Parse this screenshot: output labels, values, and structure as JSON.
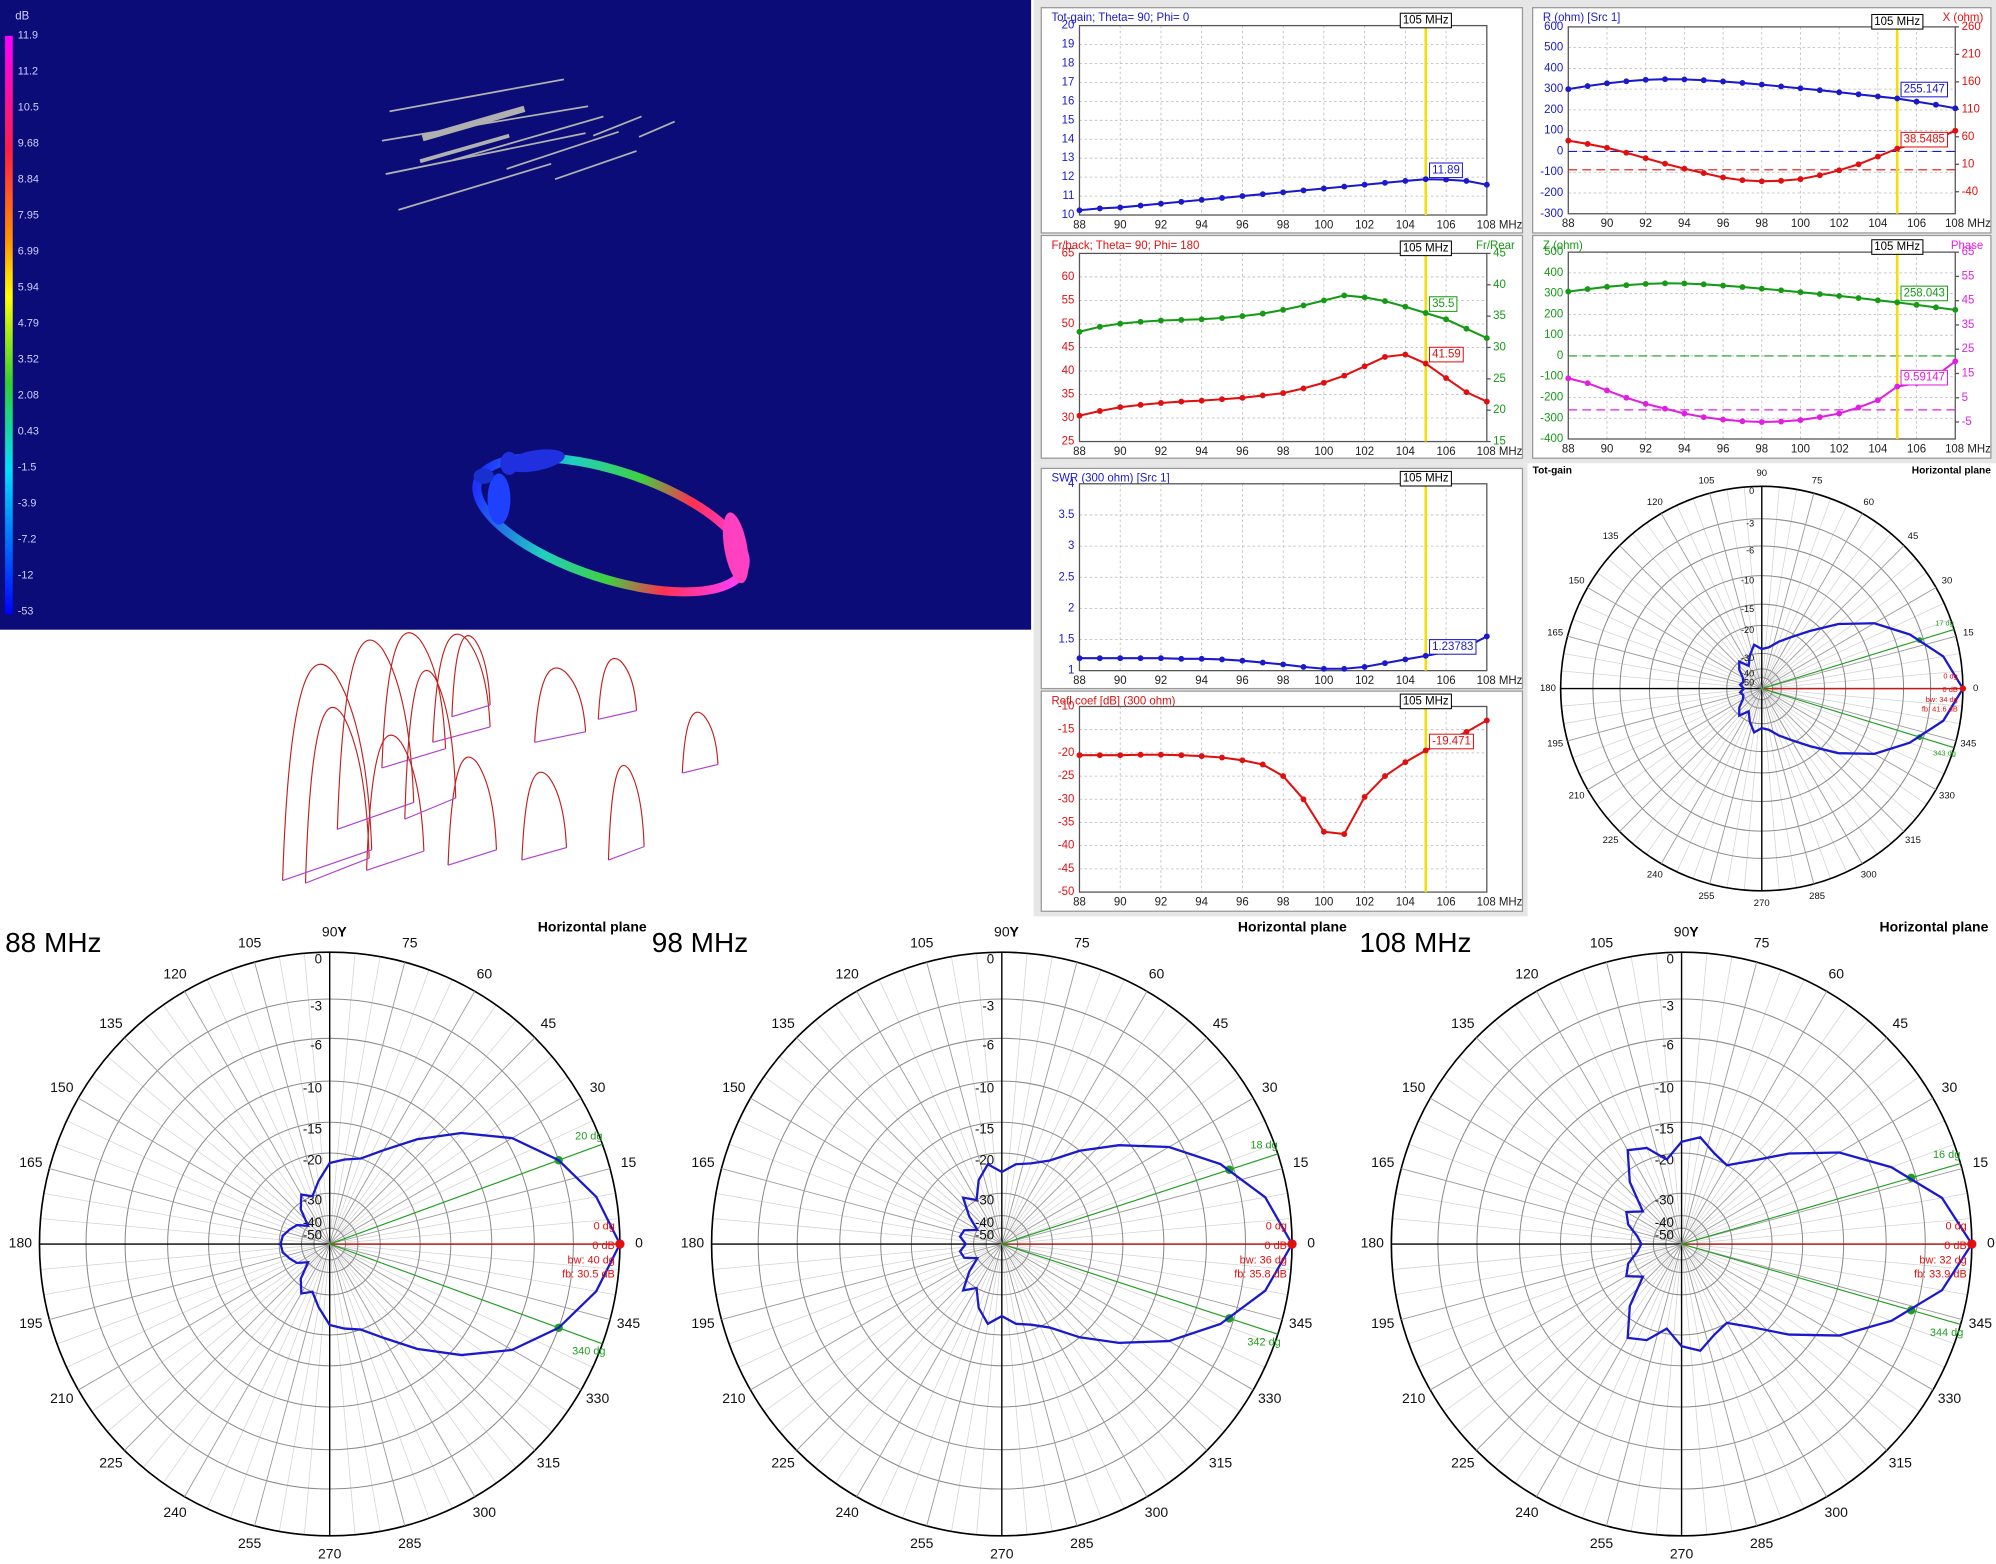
{
  "view3d": {
    "colorbar_title": "dB",
    "colorbar_ticks": [
      11.9,
      11.2,
      10.5,
      9.68,
      8.84,
      7.95,
      6.99,
      5.94,
      4.79,
      3.52,
      2.08,
      0.43,
      -1.5,
      -3.9,
      -7.2,
      -12,
      -53
    ]
  },
  "chart_data": [
    {
      "type": "line",
      "title": "Tot-gain; Theta= 90; Phi= 0",
      "title_color": "#1a1acc",
      "x": [
        88,
        89,
        90,
        91,
        92,
        93,
        94,
        95,
        96,
        97,
        98,
        99,
        100,
        101,
        102,
        103,
        104,
        105,
        106,
        107,
        108
      ],
      "xlim": [
        88,
        108
      ],
      "xticks": [
        88,
        90,
        92,
        94,
        96,
        98,
        100,
        102,
        104,
        106,
        {
          "value": 108,
          "label": "108 MHz"
        }
      ],
      "ylim": [
        10,
        20
      ],
      "yticks": [
        10,
        11,
        12,
        13,
        14,
        15,
        16,
        17,
        18,
        19,
        20
      ],
      "grid": true,
      "cursor": {
        "value": 105,
        "label": "105 MHz"
      },
      "series": [
        {
          "color": "#1a1acc",
          "values": [
            10.25,
            10.35,
            10.4,
            10.5,
            10.6,
            10.7,
            10.8,
            10.9,
            11.0,
            11.1,
            11.2,
            11.3,
            11.4,
            11.5,
            11.6,
            11.7,
            11.8,
            11.89,
            11.87,
            11.8,
            11.6
          ],
          "readout": 11.89
        }
      ]
    },
    {
      "type": "line",
      "title": "R (ohm) [Src 1]",
      "title_color": "#1a1acc",
      "y2_title": "X (ohm)",
      "y2_title_color": "#e01010",
      "x": [
        88,
        89,
        90,
        91,
        92,
        93,
        94,
        95,
        96,
        97,
        98,
        99,
        100,
        101,
        102,
        103,
        104,
        105,
        106,
        107,
        108
      ],
      "xlim": [
        88,
        108
      ],
      "xticks": [
        88,
        90,
        92,
        94,
        96,
        98,
        100,
        102,
        104,
        106,
        {
          "value": 108,
          "label": "108 MHz"
        }
      ],
      "ylim": [
        -300,
        600
      ],
      "yticks": [
        -300,
        -200,
        -100,
        0,
        100,
        200,
        300,
        400,
        500,
        600
      ],
      "y2lim": [
        -80,
        260
      ],
      "y2ticks": [
        -40,
        10,
        60,
        110,
        160,
        210,
        260
      ],
      "grid": true,
      "cursor": {
        "value": 105,
        "label": "105 MHz"
      },
      "reference_lines": [
        {
          "axis": "y",
          "value": 0,
          "color": "#1a1acc"
        },
        {
          "axis": "y2",
          "value": 0,
          "color": "#e01010"
        }
      ],
      "series": [
        {
          "color": "#1a1acc",
          "values": [
            300,
            315,
            328,
            338,
            345,
            348,
            347,
            343,
            337,
            330,
            322,
            313,
            304,
            295,
            285,
            275,
            265,
            255.147,
            240,
            225,
            208
          ],
          "readout": 255.147
        },
        {
          "color": "#e01010",
          "axis": "y2",
          "values": [
            53,
            47,
            40,
            31,
            21,
            11,
            2,
            -6,
            -14,
            -19,
            -21,
            -20,
            -17,
            -10,
            -1,
            10,
            24,
            38.5485,
            48,
            56,
            71
          ],
          "readout": 38.5485
        }
      ]
    },
    {
      "type": "line",
      "title": "Fr/back; Theta= 90; Phi= 180",
      "title_color": "#e01010",
      "y2_title": "Fr/Rear",
      "y2_title_color": "#169a16",
      "x": [
        88,
        89,
        90,
        91,
        92,
        93,
        94,
        95,
        96,
        97,
        98,
        99,
        100,
        101,
        102,
        103,
        104,
        105,
        106,
        107,
        108
      ],
      "xlim": [
        88,
        108
      ],
      "xticks": [
        88,
        90,
        92,
        94,
        96,
        98,
        100,
        102,
        104,
        106,
        {
          "value": 108,
          "label": "108 MHz"
        }
      ],
      "ylim": [
        25,
        65
      ],
      "yticks": [
        25,
        30,
        35,
        40,
        45,
        50,
        55,
        60,
        65
      ],
      "y2lim": [
        15,
        45
      ],
      "y2ticks": [
        15,
        20,
        25,
        30,
        35,
        40,
        45
      ],
      "grid": true,
      "cursor": {
        "value": 105,
        "label": "105 MHz"
      },
      "series": [
        {
          "color": "#169a16",
          "axis": "y2",
          "values": [
            32.5,
            33.3,
            33.8,
            34.1,
            34.3,
            34.4,
            34.5,
            34.7,
            35,
            35.4,
            36,
            36.7,
            37.5,
            38.3,
            38,
            37.4,
            36.5,
            35.5,
            34.5,
            33,
            31.5
          ],
          "readout": 35.5
        },
        {
          "color": "#e01010",
          "values": [
            30.5,
            31.5,
            32.3,
            32.8,
            33.2,
            33.5,
            33.7,
            34,
            34.3,
            34.8,
            35.3,
            36.3,
            37.5,
            39,
            41,
            43,
            43.5,
            41.59,
            38.5,
            35.5,
            33.5
          ],
          "readout": 41.59
        }
      ]
    },
    {
      "type": "line",
      "title": "Z (ohm)",
      "title_color": "#169a16",
      "y2_title": "Phase",
      "y2_title_color": "#e020e0",
      "x": [
        88,
        89,
        90,
        91,
        92,
        93,
        94,
        95,
        96,
        97,
        98,
        99,
        100,
        101,
        102,
        103,
        104,
        105,
        106,
        107,
        108
      ],
      "xlim": [
        88,
        108
      ],
      "xticks": [
        88,
        90,
        92,
        94,
        96,
        98,
        100,
        102,
        104,
        106,
        {
          "value": 108,
          "label": "108 MHz"
        }
      ],
      "ylim": [
        -400,
        500
      ],
      "yticks": [
        -400,
        -300,
        -200,
        -100,
        0,
        100,
        200,
        300,
        400,
        500
      ],
      "y2lim": [
        -12,
        65
      ],
      "y2ticks": [
        -5,
        5,
        15,
        25,
        35,
        45,
        55,
        65
      ],
      "grid": true,
      "cursor": {
        "value": 105,
        "label": "105 MHz"
      },
      "reference_lines": [
        {
          "axis": "y",
          "value": 0,
          "color": "#169a16"
        },
        {
          "axis": "y2",
          "value": 0,
          "color": "#e020e0"
        }
      ],
      "series": [
        {
          "color": "#169a16",
          "values": [
            310,
            322,
            333,
            341,
            347,
            350,
            349,
            345,
            339,
            332,
            324,
            316,
            307,
            298,
            289,
            279,
            268,
            258.043,
            246,
            234,
            222
          ],
          "readout": 258.043
        },
        {
          "color": "#e020e0",
          "axis": "y2",
          "values": [
            13,
            11,
            8,
            5,
            2.5,
            0.5,
            -1.5,
            -3,
            -4,
            -4.7,
            -5,
            -4.8,
            -4.2,
            -3,
            -1.5,
            1,
            4,
            9.59147,
            11,
            14,
            20
          ],
          "readout": 9.59147
        }
      ]
    },
    {
      "type": "line",
      "title": "SWR (300 ohm) [Src 1]",
      "title_color": "#1a1acc",
      "x": [
        88,
        89,
        90,
        91,
        92,
        93,
        94,
        95,
        96,
        97,
        98,
        99,
        100,
        101,
        102,
        103,
        104,
        105,
        106,
        107,
        108
      ],
      "xlim": [
        88,
        108
      ],
      "xticks": [
        88,
        90,
        92,
        94,
        96,
        98,
        100,
        102,
        104,
        106,
        {
          "value": 108,
          "label": "108 MHz"
        }
      ],
      "ylim": [
        1,
        4
      ],
      "yticks": [
        1,
        1.5,
        2,
        2.5,
        3,
        3.5,
        4
      ],
      "grid": true,
      "cursor": {
        "value": 105,
        "label": "105 MHz"
      },
      "series": [
        {
          "color": "#1a1acc",
          "values": [
            1.2,
            1.2,
            1.2,
            1.2,
            1.2,
            1.19,
            1.19,
            1.18,
            1.16,
            1.13,
            1.1,
            1.06,
            1.03,
            1.03,
            1.06,
            1.12,
            1.18,
            1.23783,
            1.3,
            1.38,
            1.55
          ],
          "readout": 1.23783
        }
      ]
    },
    {
      "type": "line",
      "title": "Refl coef [dB] (300 ohm)",
      "title_color": "#e01010",
      "x": [
        88,
        89,
        90,
        91,
        92,
        93,
        94,
        95,
        96,
        97,
        98,
        99,
        100,
        101,
        102,
        103,
        104,
        105,
        106,
        107,
        108
      ],
      "xlim": [
        88,
        108
      ],
      "xticks": [
        88,
        90,
        92,
        94,
        96,
        98,
        100,
        102,
        104,
        106,
        {
          "value": 108,
          "label": "108 MHz"
        }
      ],
      "ylim": [
        -50,
        -10
      ],
      "yticks": [
        -50,
        -45,
        -40,
        -35,
        -30,
        -25,
        -20,
        -15,
        -10
      ],
      "grid": true,
      "cursor": {
        "value": 105,
        "label": "105 MHz"
      },
      "series": [
        {
          "color": "#e01010",
          "values": [
            -20.5,
            -20.5,
            -20.5,
            -20.4,
            -20.4,
            -20.5,
            -20.7,
            -21,
            -21.6,
            -22.5,
            -25,
            -30,
            -37,
            -37.5,
            -29.5,
            -25,
            -22,
            -19.471,
            -17.5,
            -15.5,
            -13
          ],
          "readout": -19.471
        }
      ]
    },
    {
      "type": "polar",
      "title": "Tot-gain",
      "plane_label": "Horizontal plane",
      "scale": "arrl",
      "color": "#1a1acc",
      "angles": [
        0,
        10,
        20,
        30,
        40,
        50,
        60,
        70,
        80,
        90,
        100,
        110,
        120,
        130,
        140,
        150,
        160,
        170,
        180,
        190,
        200,
        210,
        220,
        230,
        240,
        250,
        260,
        270,
        280,
        290,
        300,
        310,
        320,
        330,
        340,
        350
      ],
      "values": [
        0,
        -1.5,
        -4.2,
        -7.5,
        -12,
        -17,
        -21,
        -24,
        -27,
        -28,
        -26,
        -30,
        -35,
        -30,
        -33,
        -38,
        -40,
        -38,
        -41.6,
        -38,
        -40,
        -38,
        -33,
        -30,
        -35,
        -30,
        -26,
        -28,
        -27,
        -24,
        -21,
        -17,
        -12,
        -7.5,
        -4.2,
        -1.5
      ],
      "rticks": [
        0,
        -3,
        -6,
        -10,
        -15,
        -20,
        -30,
        -40,
        -50
      ],
      "angle_ticks": [
        0,
        15,
        30,
        45,
        60,
        75,
        90,
        105,
        120,
        135,
        150,
        165,
        180,
        195,
        210,
        225,
        240,
        255,
        270,
        285,
        300,
        315,
        330,
        345
      ],
      "max": {
        "angle": 0,
        "gain": 0,
        "angle_label": "0 dg",
        "gain_label": "0 dB"
      },
      "beam_edges": [
        {
          "angle": 17,
          "label": "17 dg"
        },
        {
          "angle": 343,
          "label": "343 dg"
        }
      ],
      "annotations": [
        "bw: 34 dg",
        "fb: 41.6 dB"
      ]
    },
    {
      "type": "polar",
      "title": "88 MHz",
      "plane_label": "Horizontal plane",
      "axis_label": "Y",
      "scale": "arrl",
      "color": "#1a1acc",
      "angles": [
        0,
        10,
        20,
        30,
        40,
        50,
        60,
        70,
        80,
        90,
        100,
        110,
        120,
        130,
        140,
        150,
        160,
        170,
        180,
        190,
        200,
        210,
        220,
        230,
        240,
        250,
        260,
        270,
        280,
        290,
        300,
        310,
        320,
        330,
        340,
        350
      ],
      "values": [
        0,
        -1.2,
        -3,
        -5.5,
        -9,
        -13,
        -17,
        -20,
        -21,
        -22,
        -26,
        -30,
        -28,
        -32,
        -40,
        -35,
        -33,
        -31,
        -30.5,
        -31,
        -33,
        -35,
        -40,
        -32,
        -28,
        -30,
        -26,
        -22,
        -21,
        -20,
        -17,
        -13,
        -9,
        -5.5,
        -3,
        -1.2
      ],
      "rticks": [
        0,
        -3,
        -6,
        -10,
        -15,
        -20,
        -30,
        -40,
        -50
      ],
      "angle_ticks": [
        0,
        15,
        30,
        45,
        60,
        75,
        90,
        105,
        120,
        135,
        150,
        165,
        180,
        195,
        210,
        225,
        240,
        255,
        270,
        285,
        300,
        315,
        330,
        345
      ],
      "max": {
        "angle": 0,
        "gain": 0,
        "angle_label": "0 dg",
        "gain_label": "0 dB"
      },
      "beam_edges": [
        {
          "angle": 20,
          "label": "20 dg"
        },
        {
          "angle": 340,
          "label": "340 dg"
        }
      ],
      "annotations": [
        "bw: 40 dg",
        "fb: 30.5 dB"
      ]
    },
    {
      "type": "polar",
      "title": "98 MHz",
      "plane_label": "Horizontal plane",
      "axis_label": "Y",
      "scale": "arrl",
      "color": "#1a1acc",
      "angles": [
        0,
        10,
        20,
        30,
        40,
        50,
        60,
        70,
        80,
        90,
        100,
        110,
        120,
        130,
        140,
        150,
        160,
        170,
        180,
        190,
        200,
        210,
        220,
        230,
        240,
        250,
        260,
        270,
        280,
        290,
        300,
        310,
        320,
        330,
        340,
        350
      ],
      "values": [
        0,
        -1.4,
        -3.8,
        -7,
        -11,
        -15,
        -19,
        -21,
        -22,
        -24,
        -22,
        -25,
        -30,
        -27,
        -33,
        -40,
        -34,
        -33,
        -35.8,
        -33,
        -34,
        -40,
        -33,
        -27,
        -30,
        -25,
        -22,
        -24,
        -22,
        -21,
        -19,
        -15,
        -11,
        -7,
        -3.8,
        -1.4
      ],
      "rticks": [
        0,
        -3,
        -6,
        -10,
        -15,
        -20,
        -30,
        -40,
        -50
      ],
      "angle_ticks": [
        0,
        15,
        30,
        45,
        60,
        75,
        90,
        105,
        120,
        135,
        150,
        165,
        180,
        195,
        210,
        225,
        240,
        255,
        270,
        285,
        300,
        315,
        330,
        345
      ],
      "max": {
        "angle": 0,
        "gain": 0,
        "angle_label": "0 dg",
        "gain_label": "0 dB"
      },
      "beam_edges": [
        {
          "angle": 18,
          "label": "18 dg"
        },
        {
          "angle": 342,
          "label": "342 dg"
        }
      ],
      "annotations": [
        "bw: 36 dg",
        "fb: 35.8 dB"
      ]
    },
    {
      "type": "polar",
      "title": "108 MHz",
      "plane_label": "Horizontal plane",
      "axis_label": "Y",
      "scale": "arrl",
      "color": "#1a1acc",
      "angles": [
        0,
        10,
        20,
        30,
        40,
        50,
        60,
        70,
        80,
        90,
        100,
        110,
        120,
        130,
        140,
        150,
        160,
        170,
        180,
        190,
        200,
        210,
        220,
        230,
        240,
        250,
        260,
        270,
        280,
        290,
        300,
        310,
        320,
        330,
        340,
        350
      ],
      "values": [
        0,
        -1.6,
        -4.5,
        -8,
        -12.5,
        -17,
        -20,
        -19,
        -17,
        -18,
        -21,
        -18,
        -17,
        -22,
        -30,
        -26,
        -28,
        -32,
        -33.9,
        -32,
        -28,
        -26,
        -30,
        -22,
        -17,
        -18,
        -21,
        -18,
        -17,
        -19,
        -20,
        -17,
        -12.5,
        -8,
        -4.5,
        -1.6
      ],
      "rticks": [
        0,
        -3,
        -6,
        -10,
        -15,
        -20,
        -30,
        -40,
        -50
      ],
      "angle_ticks": [
        0,
        15,
        30,
        45,
        60,
        75,
        90,
        105,
        120,
        135,
        150,
        165,
        180,
        195,
        210,
        225,
        240,
        255,
        270,
        285,
        300,
        315,
        330,
        345
      ],
      "max": {
        "angle": 0,
        "gain": 0,
        "angle_label": "0 dg",
        "gain_label": "0 dB"
      },
      "beam_edges": [
        {
          "angle": 16,
          "label": "16 dg"
        },
        {
          "angle": 344,
          "label": "344 dg"
        }
      ],
      "annotations": [
        "bw: 32 dg",
        "fb: 33.9 dB"
      ]
    }
  ]
}
